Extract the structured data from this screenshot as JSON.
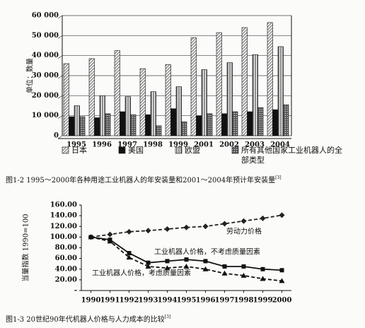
{
  "chart_data": [
    {
      "type": "bar",
      "ylabel": "单位：数量",
      "categories": [
        "1995",
        "1996",
        "1997",
        "1998",
        "1999",
        "2001",
        "2002",
        "2003",
        "2004"
      ],
      "series": [
        {
          "name": "日本",
          "color": "#222",
          "pattern": "diagonal",
          "values": [
            36000,
            38500,
            42500,
            33500,
            35500,
            49000,
            51500,
            54000,
            56500
          ]
        },
        {
          "name": "美国",
          "color": "#111",
          "pattern": "solid",
          "values": [
            9500,
            9000,
            12000,
            10500,
            13500,
            10000,
            11000,
            12000,
            13000
          ]
        },
        {
          "name": "欧盟",
          "color": "#222",
          "pattern": "vertical",
          "values": [
            15000,
            20000,
            19500,
            22000,
            24500,
            33000,
            36500,
            40500,
            44500
          ]
        },
        {
          "name": "所有其他国家工业机器人的全部类型",
          "color": "#222",
          "pattern": "dots",
          "values": [
            9500,
            11000,
            10500,
            5000,
            7000,
            11000,
            12000,
            14000,
            15500
          ]
        }
      ],
      "ylim": [
        0,
        60000
      ],
      "yticks": [
        0,
        {
          "value": 10000,
          "label": "10 000"
        },
        {
          "value": 20000,
          "label": "20 000"
        },
        {
          "value": 30000,
          "label": "30 000"
        },
        {
          "value": 40000,
          "label": "40 000"
        },
        {
          "value": 50000,
          "label": "50 000"
        },
        {
          "value": 60000,
          "label": "60 000"
        }
      ],
      "grid": true,
      "caption": "图1-2  1995～2000年各种用途工业机器人的年安装量和2001～2004年预计年安装量",
      "caption_ref": "[3]"
    },
    {
      "type": "line",
      "ylabel": "当量指数 1990=100",
      "x": [
        1990,
        1991,
        1992,
        1993,
        1994,
        1995,
        1996,
        1997,
        1998,
        1999,
        2000
      ],
      "series": [
        {
          "name": "劳动力价格",
          "color": "#222",
          "dash": true,
          "marker": "diamond",
          "values": [
            100,
            105,
            110,
            112,
            115,
            118,
            120,
            125,
            130,
            135,
            141
          ]
        },
        {
          "name": "工业机器人价格，不考虑质量因素",
          "color": "#111",
          "dash": false,
          "marker": "square",
          "values": [
            100,
            95,
            70,
            52,
            55,
            58,
            55,
            45,
            45,
            40,
            38
          ]
        },
        {
          "name": "工业机器人价格，考虑质量因素",
          "color": "#111",
          "dash": true,
          "marker": "triangle",
          "values": [
            100,
            92,
            62,
            45,
            42,
            45,
            40,
            32,
            28,
            22,
            18
          ]
        }
      ],
      "xlim": [
        1989.5,
        2000.5
      ],
      "xticks": [
        1990,
        1991,
        1992,
        1993,
        1994,
        1995,
        1996,
        1997,
        1998,
        1999,
        2000
      ],
      "ylim": [
        0,
        160
      ],
      "yticks": [
        {
          "value": 0,
          "label": "-"
        },
        {
          "value": 20,
          "label": "20.00"
        },
        {
          "value": 40,
          "label": "40.00"
        },
        {
          "value": 60,
          "label": "60.00"
        },
        {
          "value": 80,
          "label": "80.00"
        },
        {
          "value": 100,
          "label": "100.00"
        },
        {
          "value": 120,
          "label": "120.00"
        },
        {
          "value": 140,
          "label": "140.00"
        },
        {
          "value": 160,
          "label": "160.00"
        }
      ],
      "caption": "图1-3  20世纪90年代机器人价格与人力成本的比较",
      "caption_ref": "[3]"
    }
  ]
}
